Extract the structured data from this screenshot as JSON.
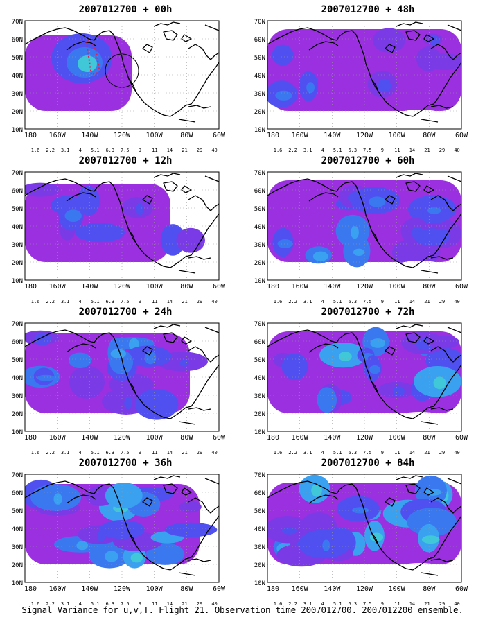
{
  "colorbar": {
    "labels": [
      "1.6",
      "2.2",
      "3.1",
      "4",
      "5.1",
      "6.3",
      "7.5",
      "9",
      "11",
      "14",
      "21",
      "29",
      "40"
    ],
    "colors": [
      "#9b30e0",
      "#7a3ae6",
      "#5050f0",
      "#3a78f0",
      "#3aa0f0",
      "#40c8d8",
      "#33d08a",
      "#22c840",
      "#a8d830",
      "#e8d830",
      "#f0a030",
      "#f06060",
      "#e83278"
    ]
  },
  "axes": {
    "lat_labels": [
      "70N",
      "60N",
      "50N",
      "40N",
      "30N",
      "20N",
      "10N"
    ],
    "lon_labels": [
      "180",
      "160W",
      "140W",
      "120W",
      "100W",
      "80W",
      "60W"
    ]
  },
  "panels": [
    {
      "title": "2007012700 + 00h"
    },
    {
      "title": "2007012700 + 48h"
    },
    {
      "title": "2007012700 + 12h"
    },
    {
      "title": "2007012700 + 60h"
    },
    {
      "title": "2007012700 + 24h"
    },
    {
      "title": "2007012700 + 72h"
    },
    {
      "title": "2007012700 + 36h"
    },
    {
      "title": "2007012700 + 84h"
    }
  ],
  "footer": "Signal Variance for u,v,T. Flight 21. Observation time 2007012700. 2007012200 ensemble."
}
